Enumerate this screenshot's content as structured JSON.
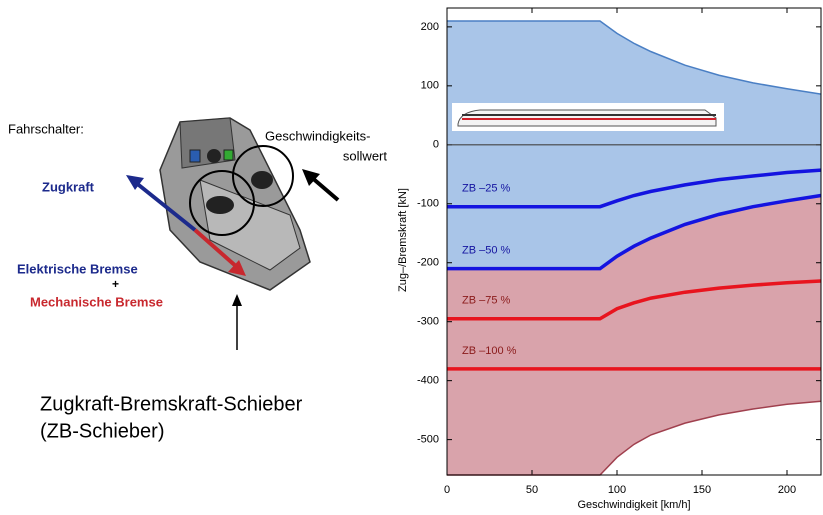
{
  "diagram": {
    "controller_label": "Fahrschalter:",
    "traction_label": "Zugkraft",
    "electric_brake_label": "Elektrische Bremse",
    "plus": "+",
    "mechanical_brake_label": "Mechanische Bremse",
    "speed_label_line1": "Geschwindigkeits-",
    "speed_label_line2": "sollwert",
    "slider_label_line1": "Zugkraft-Bremskraft-Schieber",
    "slider_label_line2": "(ZB-Schieber)"
  },
  "chart_data": {
    "type": "line",
    "xlabel": "Geschwindigkeit [km/h]",
    "ylabel": "Zug–/Bremskraft [kN]",
    "x": [
      0,
      90,
      100,
      110,
      120,
      140,
      160,
      180,
      200,
      220
    ],
    "series": [
      {
        "color": "#4a7fc4",
        "fill": "#a9c5e8",
        "values": [
          210,
          210,
          189,
          172,
          158,
          135,
          118,
          105,
          95,
          86
        ]
      },
      {
        "name": "ZB –25 %",
        "color": "#1414e0",
        "values": [
          -105,
          -105,
          -95,
          -86,
          -79,
          -68,
          -59,
          -53,
          -47,
          -43
        ]
      },
      {
        "name": "ZB –50 %",
        "color": "#1414e0",
        "fill": "#d9a3ab",
        "values": [
          -210,
          -210,
          -189,
          -172,
          -158,
          -135,
          -118,
          -105,
          -95,
          -86
        ]
      },
      {
        "name": "ZB –75 %",
        "color": "#e8141e",
        "values": [
          -295,
          -295,
          -278,
          -268,
          -260,
          -250,
          -243,
          -238,
          -234,
          -231
        ]
      },
      {
        "name": "ZB –100 %",
        "color": "#e8141e",
        "values": [
          -380,
          -380,
          -380,
          -380,
          -380,
          -380,
          -380,
          -380,
          -380,
          -380
        ]
      },
      {
        "color": "#a0404e",
        "values": [
          -560,
          -560,
          -530,
          -508,
          -492,
          -472,
          -458,
          -448,
          -440,
          -435
        ]
      }
    ],
    "xlim": [
      0,
      220
    ],
    "ylim": [
      -560,
      232
    ],
    "xticks": [
      0,
      50,
      100,
      150,
      200
    ],
    "yticks": [
      200,
      100,
      0,
      -100,
      -200,
      -300,
      -400,
      -500
    ]
  }
}
